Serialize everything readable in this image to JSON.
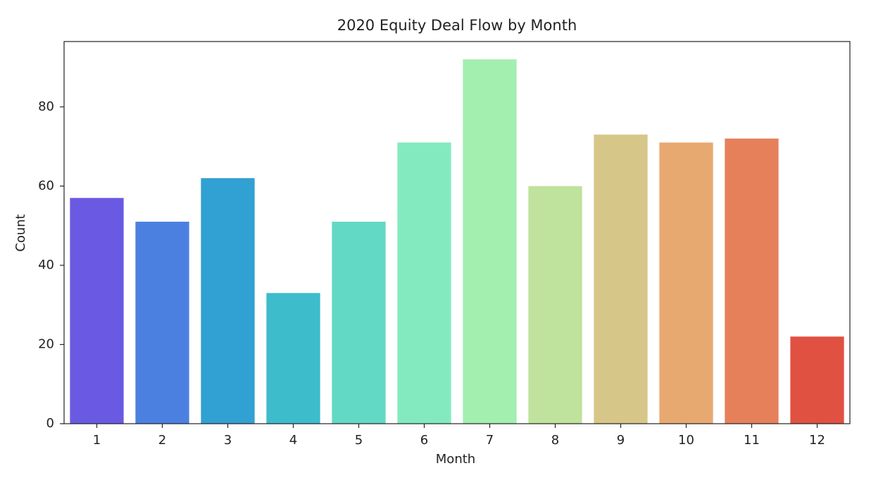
{
  "chart_data": {
    "type": "bar",
    "title": "2020 Equity Deal Flow by Month",
    "x_label": "Month",
    "y_label": "Count",
    "categories": [
      "1",
      "2",
      "3",
      "4",
      "5",
      "6",
      "7",
      "8",
      "9",
      "10",
      "11",
      "12"
    ],
    "values": [
      57,
      51,
      62,
      33,
      51,
      71,
      92,
      60,
      73,
      71,
      72,
      22
    ],
    "colors": [
      "#6a5ae3",
      "#4c80e0",
      "#31a0d2",
      "#3dbccb",
      "#62d9c5",
      "#83eabf",
      "#a2efb0",
      "#bfe29c",
      "#d6c687",
      "#e8a971",
      "#e6805a",
      "#e05142"
    ],
    "ylim": [
      0,
      96.5
    ],
    "yticks": [
      0,
      20,
      40,
      60,
      80
    ],
    "grid": false
  }
}
